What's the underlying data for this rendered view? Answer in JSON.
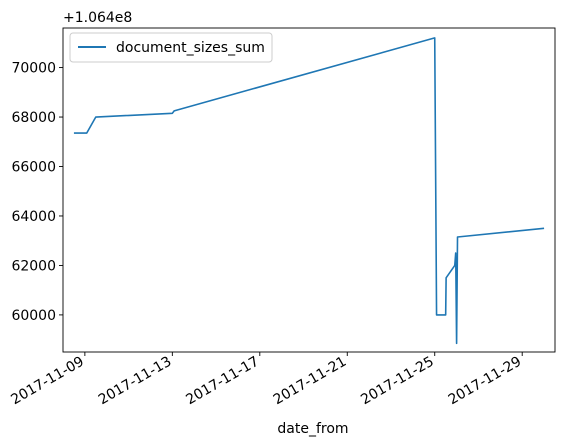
{
  "chart_data": {
    "type": "line",
    "offset_label": "+1.064e8",
    "xlabel": "date_from",
    "ylabel": "",
    "legend": {
      "placement": "top-left",
      "entries": [
        "document_sizes_sum"
      ]
    },
    "grid": false,
    "xlim": [
      "2017-11-08T00:00",
      "2017-11-30T12:00"
    ],
    "ylim": [
      58500,
      71600
    ],
    "x_ticks": [
      "2017-11-09",
      "2017-11-13",
      "2017-11-17",
      "2017-11-21",
      "2017-11-25",
      "2017-11-29"
    ],
    "y_ticks": [
      60000,
      62000,
      64000,
      66000,
      68000,
      70000
    ],
    "y_tick_labels": [
      "60000",
      "62000",
      "64000",
      "66000",
      "68000",
      "70000"
    ],
    "series": [
      {
        "name": "document_sizes_sum",
        "color": "#1f77b4",
        "points": [
          [
            "2017-11-08T12:00",
            67350
          ],
          [
            "2017-11-09T02:00",
            67350
          ],
          [
            "2017-11-09T12:00",
            68000
          ],
          [
            "2017-11-13T00:00",
            68150
          ],
          [
            "2017-11-13T02:00",
            68250
          ],
          [
            "2017-11-25T00:00",
            71200
          ],
          [
            "2017-11-25T02:00",
            60000
          ],
          [
            "2017-11-25T12:00",
            60000
          ],
          [
            "2017-11-25T12:30",
            61500
          ],
          [
            "2017-11-25T22:00",
            62000
          ],
          [
            "2017-11-25T23:00",
            62500
          ],
          [
            "2017-11-26T00:00",
            58850
          ],
          [
            "2017-11-26T01:00",
            63150
          ],
          [
            "2017-11-30T00:00",
            63500
          ]
        ]
      }
    ]
  }
}
